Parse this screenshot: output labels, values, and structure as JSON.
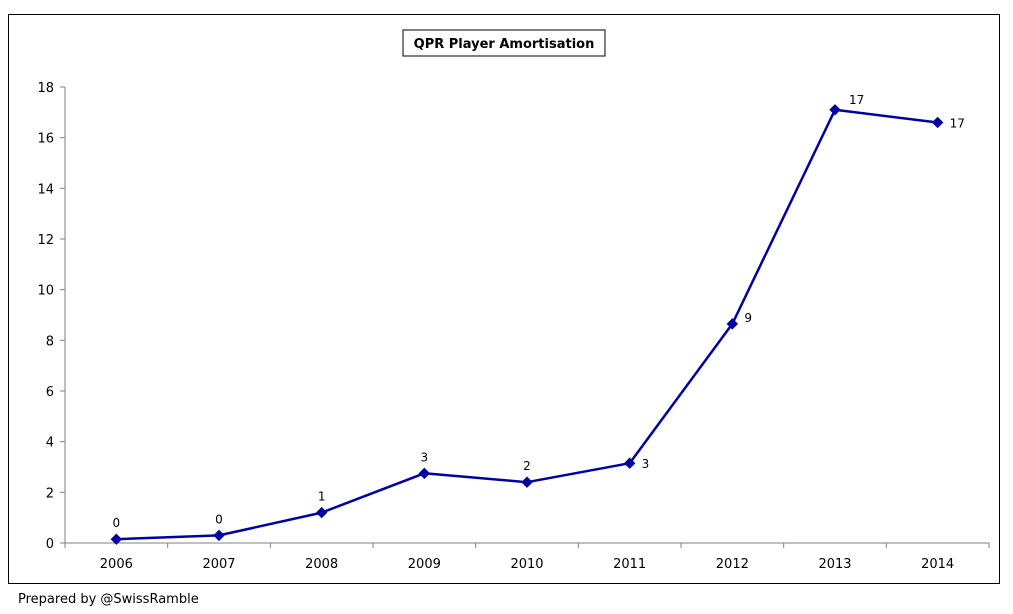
{
  "chart_data": {
    "type": "line",
    "title": "QPR Player Amortisation",
    "xlabel": "",
    "ylabel": "",
    "categories": [
      "2006",
      "2007",
      "2008",
      "2009",
      "2010",
      "2011",
      "2012",
      "2013",
      "2014"
    ],
    "series": [
      {
        "name": "QPR Player Amortisation",
        "values": [
          0.15,
          0.3,
          1.2,
          2.75,
          2.4,
          3.15,
          8.65,
          17.1,
          16.6
        ],
        "labels": [
          "0",
          "0",
          "1",
          "3",
          "2",
          "3",
          "9",
          "17",
          "17"
        ]
      }
    ],
    "ylim": [
      0,
      18
    ],
    "yticks": [
      "0",
      "2",
      "4",
      "6",
      "8",
      "10",
      "12",
      "14",
      "16",
      "18"
    ],
    "ytick_values": [
      0,
      2,
      4,
      6,
      8,
      10,
      12,
      14,
      16,
      18
    ],
    "grid": false,
    "legend": "none",
    "colors": {
      "line": "#0000A0",
      "axis": "#808080",
      "text": "#000000"
    }
  },
  "footer": {
    "credit": "Prepared by @SwissRamble"
  }
}
